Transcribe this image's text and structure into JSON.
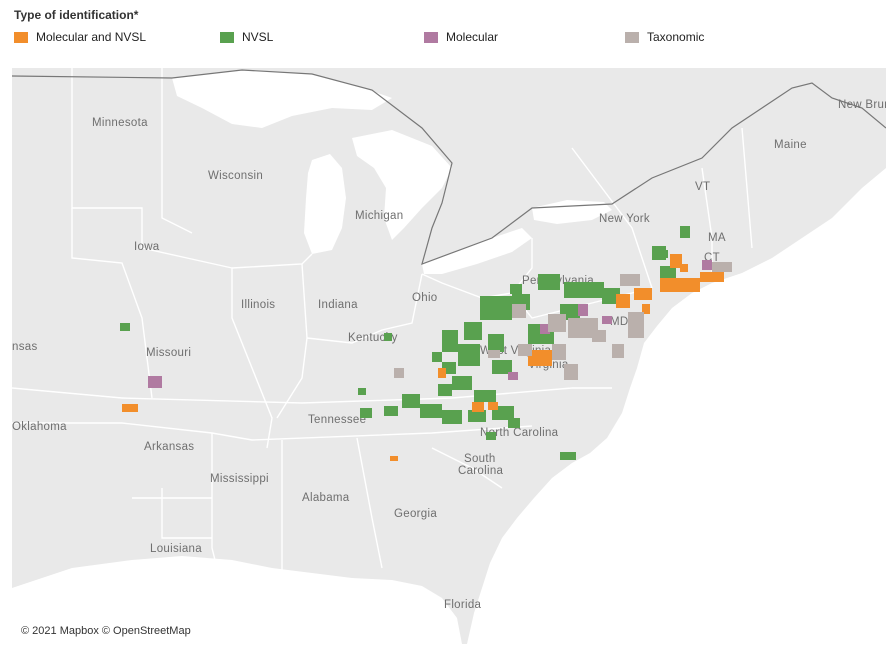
{
  "legend": {
    "title": "Type of identification*",
    "items": [
      {
        "label": "Molecular and NVSL",
        "color": "#f28e2b"
      },
      {
        "label": "NVSL",
        "color": "#59a14f"
      },
      {
        "label": "Molecular",
        "color": "#b07aa1"
      },
      {
        "label": "Taxonomic",
        "color": "#bab0ac"
      }
    ]
  },
  "map": {
    "labels": {
      "minnesota": "Minnesota",
      "wisconsin": "Wisconsin",
      "michigan": "Michigan",
      "iowa": "Iowa",
      "illinois": "Illinois",
      "indiana": "Indiana",
      "ohio": "Ohio",
      "pennsylvania": "Pennsylvania",
      "new_york": "New York",
      "vt": "VT",
      "ma": "MA",
      "ct": "CT",
      "md": "MD",
      "maine": "Maine",
      "new_brunswick": "New Brunswick",
      "missouri": "Missouri",
      "kansas": "nsas",
      "kentucky": "Kentucky",
      "virginia": "Virginia",
      "west_virginia": "West Virginia",
      "oklahoma": "Oklahoma",
      "arkansas": "Arkansas",
      "tennessee": "Tennessee",
      "north_carolina": "North Carolina",
      "south_carolina_1": "South",
      "south_carolina_2": "Carolina",
      "mississippi": "Mississippi",
      "alabama": "Alabama",
      "georgia": "Georgia",
      "louisiana": "Louisiana",
      "florida": "Florida"
    },
    "attribution": "© 2021 Mapbox © OpenStreetMap"
  }
}
